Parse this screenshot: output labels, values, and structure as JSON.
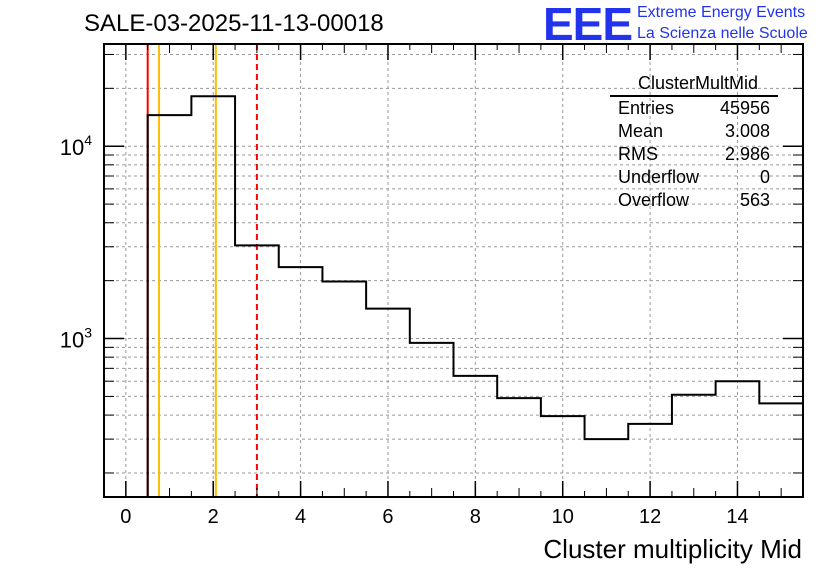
{
  "title": "SALE-03-2025-11-13-00018",
  "logo": {
    "mark": "EEE",
    "line1": "Extreme Energy Events",
    "line2": "La Scienza nelle Scuole",
    "color": "#2233ee"
  },
  "stats": {
    "name": "ClusterMultMid",
    "rows": [
      {
        "label": "Entries",
        "value": "45956"
      },
      {
        "label": "Mean",
        "value": "3.008"
      },
      {
        "label": "RMS",
        "value": "2.986"
      },
      {
        "label": "Underflow",
        "value": "0"
      },
      {
        "label": "Overflow",
        "value": "563"
      }
    ]
  },
  "chart_data": {
    "type": "histogram",
    "title": "SALE-03-2025-11-13-00018",
    "xlabel": "Cluster multiplicity Mid",
    "ylabel": "",
    "yscale": "log",
    "xlim": [
      -0.5,
      15.5
    ],
    "ylim": [
      150,
      34000
    ],
    "grid": true,
    "bin_edges": [
      0.5,
      1.5,
      2.5,
      3.5,
      4.5,
      5.5,
      6.5,
      7.5,
      8.5,
      9.5,
      10.5,
      11.5,
      12.5,
      13.5,
      14.5,
      15.5
    ],
    "bins": [
      {
        "center": 1,
        "count": 14500
      },
      {
        "center": 2,
        "count": 18200
      },
      {
        "center": 3,
        "count": 3050
      },
      {
        "center": 4,
        "count": 2350
      },
      {
        "center": 5,
        "count": 1980
      },
      {
        "center": 6,
        "count": 1430
      },
      {
        "center": 7,
        "count": 950
      },
      {
        "center": 8,
        "count": 640
      },
      {
        "center": 9,
        "count": 490
      },
      {
        "center": 10,
        "count": 395
      },
      {
        "center": 11,
        "count": 300
      },
      {
        "center": 12,
        "count": 360
      },
      {
        "center": 13,
        "count": 510
      },
      {
        "center": 14,
        "count": 600
      },
      {
        "center": 15,
        "count": 460
      }
    ],
    "x_ticks": [
      "0",
      "2",
      "4",
      "6",
      "8",
      "10",
      "12",
      "14"
    ],
    "y_ticks": [
      {
        "value": 1000,
        "label_base": "10",
        "label_exp": "3"
      },
      {
        "value": 10000,
        "label_base": "10",
        "label_exp": "4"
      }
    ],
    "vertical_lines": [
      {
        "x": 0.5,
        "color": "#ff0000",
        "style": "solid",
        "note": "left edge red"
      },
      {
        "x": 0.76,
        "color": "#ffbb00",
        "style": "solid"
      },
      {
        "x": 2.06,
        "color": "#ffbb00",
        "style": "solid"
      },
      {
        "x": 3.0,
        "color": "#ff0000",
        "style": "dashed"
      }
    ]
  }
}
